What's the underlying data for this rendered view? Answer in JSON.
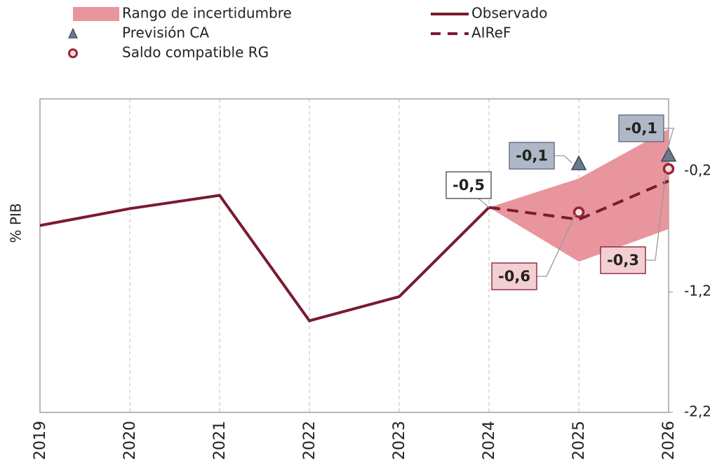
{
  "chart_data": {
    "type": "line",
    "ylabel": "% PIB",
    "categories": [
      "2019",
      "2020",
      "2021",
      "2022",
      "2023",
      "2024",
      "2025",
      "2026"
    ],
    "ylim": [
      -2.2,
      0.4
    ],
    "yticks": [
      {
        "value": -2.2,
        "label": "-2,2"
      },
      {
        "value": -1.2,
        "label": "-1,2"
      },
      {
        "value": -0.2,
        "label": "-0,2"
      }
    ],
    "grid": true,
    "band": {
      "name": "Rango de incertidumbre",
      "color": "#e8959d",
      "lower": [
        null,
        null,
        null,
        null,
        null,
        -0.5,
        -0.95,
        -0.68
      ],
      "upper": [
        null,
        null,
        null,
        null,
        null,
        -0.5,
        -0.26,
        0.15
      ]
    },
    "series": [
      {
        "name": "Observado",
        "color": "#7b1a30",
        "style": "solid",
        "values": [
          -0.65,
          -0.51,
          -0.4,
          -1.44,
          -1.24,
          -0.5,
          null,
          null
        ],
        "value_labels": [
          null,
          null,
          null,
          null,
          null,
          "-0,5",
          null,
          null
        ]
      },
      {
        "name": "AIReF",
        "color": "#7b1a30",
        "style": "dashed",
        "values": [
          null,
          null,
          null,
          null,
          null,
          -0.5,
          -0.6,
          -0.28
        ],
        "value_labels": [
          null,
          null,
          null,
          null,
          null,
          null,
          "-0,6",
          "-0,3"
        ]
      },
      {
        "name": "Previsión CA",
        "color": "#6b7a8f",
        "style": "triangle",
        "values": [
          null,
          null,
          null,
          null,
          null,
          null,
          -0.14,
          -0.07
        ],
        "value_labels": [
          null,
          null,
          null,
          null,
          null,
          null,
          "-0,1",
          "-0,1"
        ]
      },
      {
        "name": "Saldo compatible RG",
        "color": "#9b2335",
        "style": "circle",
        "values": [
          null,
          null,
          null,
          null,
          null,
          null,
          -0.54,
          -0.18
        ]
      }
    ]
  }
}
